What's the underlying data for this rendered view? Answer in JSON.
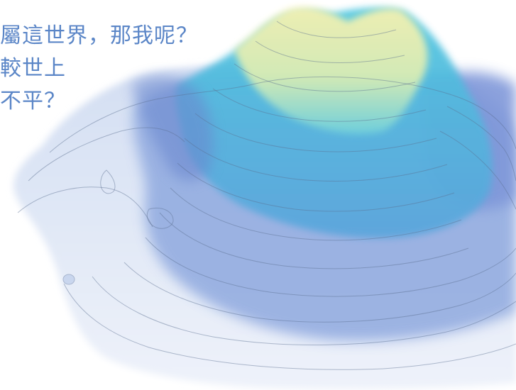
{
  "poem": {
    "lines": [
      "屬這世界，那我呢？",
      "較世上",
      "不平？"
    ]
  },
  "colors": {
    "text": "#5b86c7",
    "peak": "#f2efa6",
    "mid": "#46c0dc",
    "slope": "#7a9bd6",
    "base": "#dfe8f6"
  }
}
